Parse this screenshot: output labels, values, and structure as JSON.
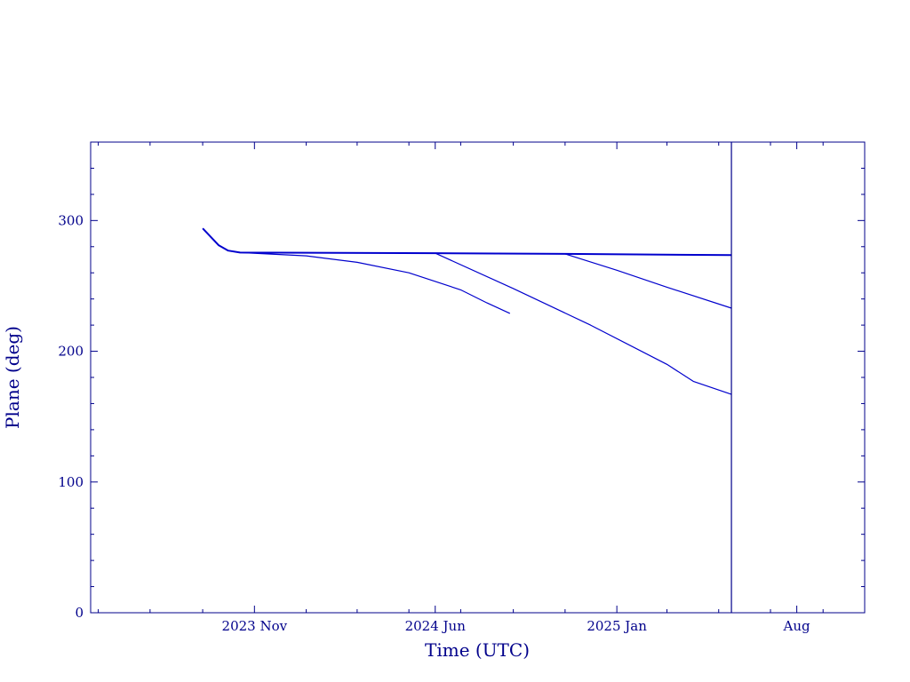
{
  "chart_data": {
    "type": "line",
    "title": "",
    "xlabel": "Time (UTC)",
    "ylabel": "Plane (deg)",
    "ylim": [
      0,
      360
    ],
    "xlim": [
      "2023-04-22",
      "2025-10-20"
    ],
    "x_ticks": [
      {
        "label": "2023 Nov",
        "x": "2023-11-01"
      },
      {
        "label": "2024 Jun",
        "x": "2024-06-01"
      },
      {
        "label": "2025 Jan",
        "x": "2025-01-01"
      },
      {
        "label": "Aug",
        "x": "2025-08-01"
      }
    ],
    "y_ticks": [
      0,
      100,
      200,
      300
    ],
    "y_minor_step": 20,
    "x_minor_step_months": 2,
    "grid": false,
    "colors": {
      "line": "#0000cd",
      "axes": "#00008b",
      "text": "#00008b"
    },
    "vertical_marker": {
      "x": "2025-05-16"
    },
    "series": [
      {
        "values": [
          {
            "x": "2023-09-01",
            "y": 294
          },
          {
            "x": "2023-09-20",
            "y": 281
          },
          {
            "x": "2023-10-01",
            "y": 277
          },
          {
            "x": "2023-10-15",
            "y": 275.5
          },
          {
            "x": "2024-06-01",
            "y": 275
          },
          {
            "x": "2024-11-01",
            "y": 274.5
          },
          {
            "x": "2025-05-16",
            "y": 273.5
          }
        ]
      },
      {
        "values": [
          {
            "x": "2023-10-15",
            "y": 275.5
          },
          {
            "x": "2024-01-01",
            "y": 273
          },
          {
            "x": "2024-03-01",
            "y": 268
          },
          {
            "x": "2024-05-01",
            "y": 260
          },
          {
            "x": "2024-07-01",
            "y": 247
          },
          {
            "x": "2024-08-01",
            "y": 237
          },
          {
            "x": "2024-08-28",
            "y": 229
          }
        ]
      },
      {
        "values": [
          {
            "x": "2024-06-01",
            "y": 275
          },
          {
            "x": "2024-09-01",
            "y": 248
          },
          {
            "x": "2024-12-01",
            "y": 220
          },
          {
            "x": "2025-03-01",
            "y": 190
          },
          {
            "x": "2025-04-01",
            "y": 177
          },
          {
            "x": "2025-05-16",
            "y": 167
          }
        ]
      },
      {
        "values": [
          {
            "x": "2024-11-01",
            "y": 274.5
          },
          {
            "x": "2025-01-01",
            "y": 262
          },
          {
            "x": "2025-03-01",
            "y": 249
          },
          {
            "x": "2025-05-16",
            "y": 233
          }
        ]
      }
    ]
  }
}
